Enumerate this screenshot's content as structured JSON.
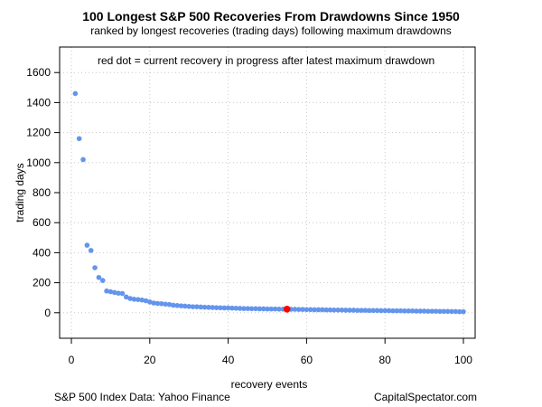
{
  "chart_data": {
    "type": "scatter",
    "title": "100 Longest S&P 500 Recoveries From Drawdowns Since 1950",
    "subtitle": "ranked by longest recoveries (trading days) following maximum drawdowns",
    "xlabel": "recovery events",
    "ylabel": "trading days",
    "xlim": [
      -3,
      103
    ],
    "ylim": [
      -170,
      1770
    ],
    "x_ticks": [
      0,
      20,
      40,
      60,
      80,
      100
    ],
    "y_ticks": [
      0,
      200,
      400,
      600,
      800,
      1000,
      1200,
      1400,
      1600
    ],
    "grid": true,
    "annotation": "red dot = current recovery in progress after latest maximum drawdown",
    "point_color": "#6495ED",
    "highlight_color": "#FF0000",
    "x": [
      1,
      2,
      3,
      4,
      5,
      6,
      7,
      8,
      9,
      10,
      11,
      12,
      13,
      14,
      15,
      16,
      17,
      18,
      19,
      20,
      21,
      22,
      23,
      24,
      25,
      26,
      27,
      28,
      29,
      30,
      31,
      32,
      33,
      34,
      35,
      36,
      37,
      38,
      39,
      40,
      41,
      42,
      43,
      44,
      45,
      46,
      47,
      48,
      49,
      50,
      51,
      52,
      53,
      54,
      55,
      56,
      57,
      58,
      59,
      60,
      61,
      62,
      63,
      64,
      65,
      66,
      67,
      68,
      69,
      70,
      71,
      72,
      73,
      74,
      75,
      76,
      77,
      78,
      79,
      80,
      81,
      82,
      83,
      84,
      85,
      86,
      87,
      88,
      89,
      90,
      91,
      92,
      93,
      94,
      95,
      96,
      97,
      98,
      99,
      100
    ],
    "values": [
      1460,
      1160,
      1020,
      450,
      415,
      300,
      235,
      215,
      145,
      140,
      135,
      130,
      128,
      105,
      95,
      90,
      88,
      85,
      80,
      72,
      65,
      62,
      60,
      57,
      55,
      50,
      48,
      46,
      44,
      42,
      40,
      40,
      38,
      37,
      36,
      35,
      34,
      33,
      32,
      32,
      31,
      30,
      29,
      28,
      28,
      27,
      27,
      26,
      26,
      25,
      25,
      25,
      24,
      24,
      24,
      23,
      23,
      22,
      22,
      21,
      21,
      20,
      20,
      20,
      19,
      19,
      18,
      18,
      18,
      17,
      17,
      17,
      16,
      16,
      16,
      15,
      15,
      15,
      14,
      14,
      14,
      13,
      13,
      13,
      12,
      12,
      12,
      11,
      11,
      11,
      10,
      10,
      10,
      9,
      9,
      9,
      8,
      8,
      7,
      7
    ],
    "highlight": {
      "x": 55,
      "value": 24
    }
  },
  "source_left": "S&P 500 Index Data: Yahoo Finance",
  "source_right": "CapitalSpectator.com"
}
